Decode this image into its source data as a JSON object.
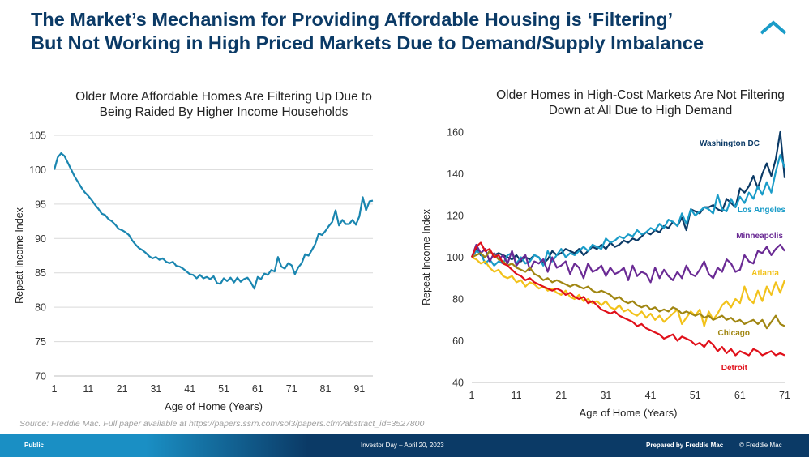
{
  "slide": {
    "title_line1": "The Market’s Mechanism for Providing Affordable Housing is ‘Filtering’",
    "title_line2": "But Not Working in High Priced Markets Due to Demand/Supply Imbalance",
    "source": "Source: Freddie Mac. Full paper available at https://papers.ssrn.com/sol3/papers.cfm?abstract_id=3527800",
    "footer": {
      "classification": "Public",
      "event": "Investor Day – April 20, 2023",
      "prepared_by": "Prepared by Freddie Mac",
      "copyright": "© Freddie Mac"
    },
    "logo_icon": "roof-chevron-icon",
    "colors": {
      "title": "#0b3a66",
      "footer": "#0b3a66",
      "accent": "#1a8fc4"
    }
  },
  "chart_data": [
    {
      "type": "line",
      "title": "Older More Affordable Homes Are Filtering Up Due to Being Raided By Higher Income Households",
      "title_lines": [
        "Older More Affordable Homes Are Filtering Up Due to",
        "Being Raided By Higher Income Households"
      ],
      "xlabel": "Age of Home (Years)",
      "ylabel": "Repeat Income Index",
      "xlim": [
        1,
        95
      ],
      "ylim": [
        70,
        105
      ],
      "xticks": [
        1,
        11,
        21,
        31,
        41,
        51,
        61,
        71,
        81,
        91
      ],
      "yticks": [
        70,
        75,
        80,
        85,
        90,
        95,
        100,
        105
      ],
      "grid": true,
      "series": [
        {
          "color": "#1a86b0",
          "x": [
            1,
            2,
            3,
            4,
            5,
            6,
            7,
            8,
            9,
            10,
            11,
            12,
            13,
            14,
            15,
            16,
            17,
            18,
            19,
            20,
            21,
            22,
            23,
            24,
            25,
            26,
            27,
            28,
            29,
            30,
            31,
            32,
            33,
            34,
            35,
            36,
            37,
            38,
            39,
            40,
            41,
            42,
            43,
            44,
            45,
            46,
            47,
            48,
            49,
            50,
            51,
            52,
            53,
            54,
            55,
            56,
            57,
            58,
            59,
            60,
            61,
            62,
            63,
            64,
            65,
            66,
            67,
            68,
            69,
            70,
            71,
            72,
            73,
            74,
            75,
            76,
            77,
            78,
            79,
            80,
            81,
            82,
            83,
            84,
            85,
            86,
            87,
            88,
            89,
            90,
            91,
            92,
            93,
            94,
            95
          ],
          "values": [
            100,
            101.8,
            102.4,
            102,
            101,
            100,
            99,
            98.2,
            97.4,
            96.7,
            96.2,
            95.6,
            94.9,
            94.3,
            93.6,
            93.4,
            92.8,
            92.5,
            92,
            91.4,
            91.2,
            90.9,
            90.5,
            89.7,
            89.1,
            88.6,
            88.3,
            87.9,
            87.4,
            87.1,
            87.3,
            86.9,
            87.1,
            86.6,
            86.4,
            86.6,
            86,
            85.9,
            85.6,
            85.2,
            84.8,
            84.7,
            84.2,
            84.7,
            84.2,
            84.4,
            84.1,
            84.5,
            83.5,
            83.4,
            84.2,
            83.8,
            84.3,
            83.6,
            84.3,
            83.7,
            84.1,
            84.3,
            83.6,
            82.7,
            84.4,
            84.1,
            84.9,
            84.7,
            85.4,
            85.2,
            87.3,
            85.9,
            85.6,
            86.4,
            86.1,
            84.8,
            85.8,
            86.4,
            87.7,
            87.5,
            88.3,
            89.2,
            90.7,
            90.5,
            91.1,
            91.8,
            92.4,
            94.1,
            91.9,
            92.7,
            92.1,
            92.1,
            92.7,
            92,
            93.2,
            96,
            94.1,
            95.4,
            95.5
          ]
        }
      ]
    },
    {
      "type": "line",
      "title": "Older Homes in High-Cost Markets Are Not Filtering Down at All Due to High Demand",
      "title_lines": [
        "Older Homes in High-Cost Markets Are Not Filtering",
        "Down at All Due to High Demand"
      ],
      "xlabel": "Age of Home (Years)",
      "ylabel": "Repeat Income Index",
      "xlim": [
        1,
        71
      ],
      "ylim": [
        40,
        160
      ],
      "xticks": [
        1,
        11,
        21,
        31,
        41,
        51,
        61,
        71
      ],
      "yticks": [
        40,
        60,
        80,
        100,
        120,
        140,
        160
      ],
      "grid": false,
      "x": [
        1,
        2,
        3,
        4,
        5,
        6,
        7,
        8,
        9,
        10,
        11,
        12,
        13,
        14,
        15,
        16,
        17,
        18,
        19,
        20,
        21,
        22,
        23,
        24,
        25,
        26,
        27,
        28,
        29,
        30,
        31,
        32,
        33,
        34,
        35,
        36,
        37,
        38,
        39,
        40,
        41,
        42,
        43,
        44,
        45,
        46,
        47,
        48,
        49,
        50,
        51,
        52,
        53,
        54,
        55,
        56,
        57,
        58,
        59,
        60,
        61,
        62,
        63,
        64,
        65,
        66,
        67,
        68,
        69,
        70,
        71
      ],
      "series": [
        {
          "name": "Washington DC",
          "color": "#0b3a66",
          "values": [
            100,
            104,
            101,
            100,
            103,
            101,
            102,
            101,
            100,
            99,
            101,
            98,
            100,
            99,
            101,
            100,
            97,
            99,
            103,
            101,
            102,
            104,
            103,
            102,
            104,
            101,
            103,
            105,
            104,
            106,
            104,
            107,
            105,
            106,
            108,
            107,
            109,
            108,
            110,
            112,
            111,
            113,
            112,
            115,
            114,
            117,
            115,
            119,
            113,
            123,
            122,
            121,
            124,
            124,
            125,
            123,
            122,
            128,
            126,
            124,
            133,
            131,
            134,
            139,
            133,
            140,
            145,
            139,
            147,
            160,
            138
          ]
        },
        {
          "name": "Los Angeles",
          "color": "#1a9cc8",
          "values": [
            100,
            103,
            102,
            97,
            99,
            96,
            98,
            97,
            101,
            102,
            97,
            100,
            97,
            98,
            101,
            100,
            96,
            103,
            98,
            101,
            104,
            100,
            102,
            101,
            103,
            105,
            103,
            106,
            105,
            104,
            109,
            107,
            108,
            110,
            109,
            111,
            110,
            113,
            111,
            112,
            114,
            113,
            116,
            114,
            118,
            117,
            115,
            121,
            116,
            123,
            120,
            122,
            124,
            123,
            121,
            130,
            123,
            122,
            128,
            124,
            129,
            126,
            131,
            128,
            134,
            130,
            136,
            131,
            141,
            149,
            143
          ]
        },
        {
          "name": "Minneapolis",
          "color": "#6a2a94",
          "values": [
            100,
            106,
            102,
            104,
            98,
            102,
            99,
            101,
            97,
            103,
            96,
            99,
            101,
            94,
            98,
            97,
            99,
            93,
            100,
            95,
            96,
            98,
            92,
            97,
            95,
            90,
            97,
            93,
            94,
            96,
            91,
            95,
            92,
            93,
            95,
            89,
            96,
            91,
            93,
            92,
            88,
            95,
            90,
            94,
            91,
            89,
            93,
            90,
            96,
            92,
            91,
            94,
            98,
            92,
            90,
            95,
            93,
            99,
            97,
            93,
            94,
            101,
            98,
            97,
            103,
            102,
            105,
            101,
            104,
            106,
            103
          ]
        },
        {
          "name": "Atlanta",
          "color": "#f2c21b",
          "values": [
            100,
            99,
            97,
            98,
            95,
            93,
            94,
            91,
            90,
            91,
            88,
            89,
            86,
            88,
            87,
            85,
            86,
            84,
            85,
            83,
            82,
            84,
            81,
            80,
            82,
            79,
            80,
            78,
            79,
            77,
            79,
            76,
            75,
            77,
            74,
            75,
            73,
            72,
            74,
            71,
            73,
            70,
            72,
            69,
            71,
            73,
            75,
            68,
            71,
            74,
            72,
            75,
            67,
            74,
            70,
            73,
            77,
            79,
            76,
            80,
            78,
            86,
            80,
            78,
            84,
            79,
            86,
            82,
            88,
            83,
            89
          ]
        },
        {
          "name": "Chicago",
          "color": "#a08612",
          "values": [
            100,
            101,
            102,
            100,
            103,
            101,
            99,
            98,
            96,
            97,
            95,
            94,
            93,
            95,
            92,
            91,
            89,
            90,
            88,
            89,
            88,
            87,
            86,
            87,
            86,
            85,
            86,
            84,
            83,
            84,
            83,
            82,
            80,
            81,
            79,
            78,
            79,
            77,
            76,
            77,
            75,
            76,
            74,
            75,
            74,
            76,
            75,
            73,
            74,
            73,
            72,
            73,
            71,
            72,
            70,
            71,
            72,
            70,
            71,
            69,
            70,
            68,
            69,
            70,
            68,
            70,
            66,
            69,
            72,
            68,
            67
          ]
        },
        {
          "name": "Detroit",
          "color": "#e0101a",
          "values": [
            100,
            105,
            107,
            103,
            104,
            100,
            101,
            97,
            96,
            94,
            92,
            91,
            89,
            90,
            88,
            87,
            86,
            85,
            84,
            85,
            84,
            82,
            83,
            81,
            80,
            81,
            78,
            79,
            77,
            75,
            74,
            73,
            74,
            72,
            71,
            70,
            69,
            67,
            68,
            66,
            65,
            64,
            63,
            61,
            62,
            63,
            60,
            62,
            61,
            60,
            58,
            59,
            57,
            60,
            58,
            55,
            57,
            54,
            56,
            53,
            55,
            54,
            53,
            56,
            55,
            53,
            54,
            55,
            53,
            54,
            53
          ]
        }
      ]
    }
  ]
}
